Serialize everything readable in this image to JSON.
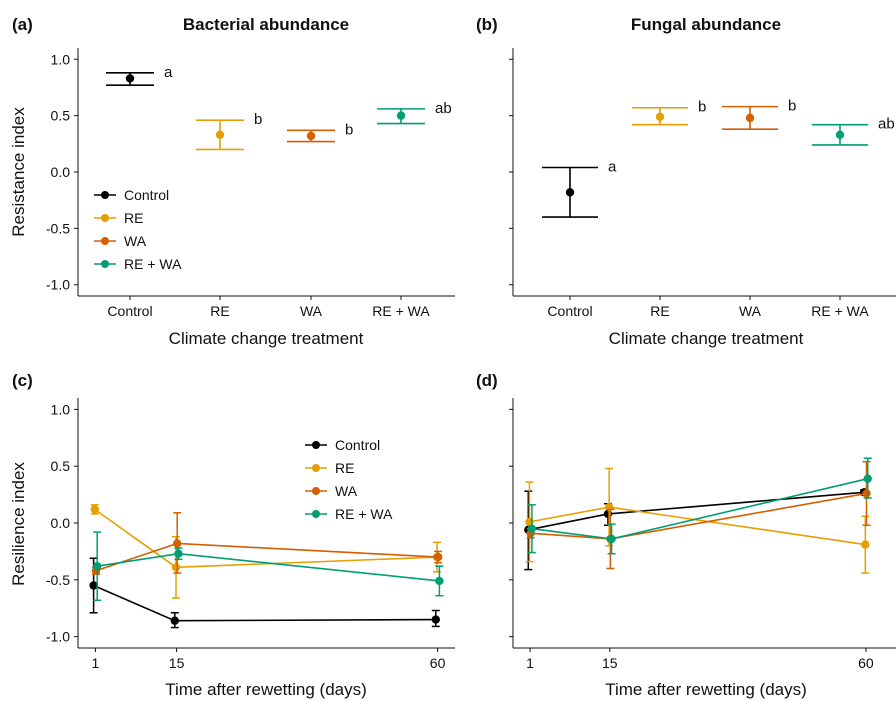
{
  "figure": {
    "treatments": [
      "Control",
      "RE",
      "WA",
      "RE + WA"
    ],
    "colors": {
      "Control": "#000000",
      "RE": "#E69F00",
      "WA": "#D55E00",
      "RE + WA": "#009E73"
    }
  },
  "chart_data": [
    {
      "tag": "(a)",
      "type": "scatter",
      "title": "Bacterial abundance",
      "xlabel": "Climate change treatment",
      "ylabel": "Resistance index",
      "ylim": [
        -1.1,
        1.1
      ],
      "yticks": [
        1.0,
        0.5,
        0.0,
        -0.5,
        -1.0
      ],
      "ytick_labels": [
        "1.0",
        "0.5",
        "0.0",
        "-0.5",
        "-1.0"
      ],
      "categories": [
        "Control",
        "RE",
        "WA",
        "RE + WA"
      ],
      "legend": {
        "position": "bottom-left",
        "entries": [
          "Control",
          "RE",
          "WA",
          "RE + WA"
        ]
      },
      "points": [
        {
          "series": "Control",
          "value": 0.83,
          "lower": 0.77,
          "upper": 0.88,
          "letter": "a"
        },
        {
          "series": "RE",
          "value": 0.33,
          "lower": 0.2,
          "upper": 0.46,
          "letter": "b"
        },
        {
          "series": "WA",
          "value": 0.32,
          "lower": 0.27,
          "upper": 0.37,
          "letter": "b"
        },
        {
          "series": "RE + WA",
          "value": 0.5,
          "lower": 0.43,
          "upper": 0.56,
          "letter": "ab"
        }
      ]
    },
    {
      "tag": "(b)",
      "type": "scatter",
      "title": "Fungal abundance",
      "xlabel": "Climate change treatment",
      "ylabel": "",
      "ylim": [
        -1.1,
        1.1
      ],
      "categories": [
        "Control",
        "RE",
        "WA",
        "RE + WA"
      ],
      "points": [
        {
          "series": "Control",
          "value": -0.18,
          "lower": -0.4,
          "upper": 0.04,
          "letter": "a"
        },
        {
          "series": "RE",
          "value": 0.49,
          "lower": 0.42,
          "upper": 0.57,
          "letter": "b"
        },
        {
          "series": "WA",
          "value": 0.48,
          "lower": 0.38,
          "upper": 0.58,
          "letter": "b"
        },
        {
          "series": "RE + WA",
          "value": 0.33,
          "lower": 0.24,
          "upper": 0.42,
          "letter": "ab"
        }
      ]
    },
    {
      "tag": "(c)",
      "type": "line",
      "title": "",
      "xlabel": "Time after rewetting (days)",
      "ylabel": "Resilience index",
      "ylim": [
        -1.1,
        1.1
      ],
      "yticks": [
        1.0,
        0.5,
        0.0,
        -0.5,
        -1.0
      ],
      "ytick_labels": [
        "1.0",
        "0.5",
        "0.0",
        "-0.5",
        "-1.0"
      ],
      "x": [
        1,
        15,
        60
      ],
      "xlim": [
        -2,
        63
      ],
      "xtick_labels": [
        "1",
        "15",
        "60"
      ],
      "legend": {
        "position": "top-center",
        "entries": [
          "Control",
          "RE",
          "WA",
          "RE + WA"
        ]
      },
      "series": [
        {
          "name": "Control",
          "values": [
            -0.55,
            -0.86,
            -0.85
          ],
          "lower": [
            -0.79,
            -0.92,
            -0.91
          ],
          "upper": [
            -0.31,
            -0.79,
            -0.77
          ]
        },
        {
          "name": "RE",
          "values": [
            0.12,
            -0.39,
            -0.3
          ],
          "lower": [
            0.08,
            -0.66,
            -0.43
          ],
          "upper": [
            0.16,
            -0.12,
            -0.17
          ]
        },
        {
          "name": "WA",
          "values": [
            -0.42,
            -0.18,
            -0.3
          ],
          "lower": [
            -0.45,
            -0.44,
            -0.35
          ],
          "upper": [
            -0.39,
            0.09,
            -0.25
          ]
        },
        {
          "name": "RE + WA",
          "values": [
            -0.38,
            -0.27,
            -0.51
          ],
          "lower": [
            -0.68,
            -0.32,
            -0.64
          ],
          "upper": [
            -0.08,
            -0.22,
            -0.38
          ]
        }
      ]
    },
    {
      "tag": "(d)",
      "type": "line",
      "title": "",
      "xlabel": "Time after rewetting (days)",
      "ylabel": "",
      "ylim": [
        -1.1,
        1.1
      ],
      "x": [
        1,
        15,
        60
      ],
      "xlim": [
        -2,
        63
      ],
      "xtick_labels": [
        "1",
        "15",
        "60"
      ],
      "series": [
        {
          "name": "Control",
          "values": [
            -0.06,
            0.08,
            0.27
          ],
          "lower": [
            -0.41,
            -0.02,
            0.25
          ],
          "upper": [
            0.28,
            0.17,
            0.29
          ]
        },
        {
          "name": "RE",
          "values": [
            0.01,
            0.14,
            -0.19
          ],
          "lower": [
            -0.34,
            -0.2,
            -0.44
          ],
          "upper": [
            0.36,
            0.48,
            0.06
          ]
        },
        {
          "name": "WA",
          "values": [
            -0.09,
            -0.14,
            0.26
          ],
          "lower": [
            -0.13,
            -0.4,
            -0.02
          ],
          "upper": [
            -0.05,
            0.12,
            0.54
          ]
        },
        {
          "name": "RE + WA",
          "values": [
            -0.05,
            -0.14,
            0.39
          ],
          "lower": [
            -0.26,
            -0.27,
            0.22
          ],
          "upper": [
            0.16,
            -0.01,
            0.57
          ]
        }
      ]
    }
  ]
}
